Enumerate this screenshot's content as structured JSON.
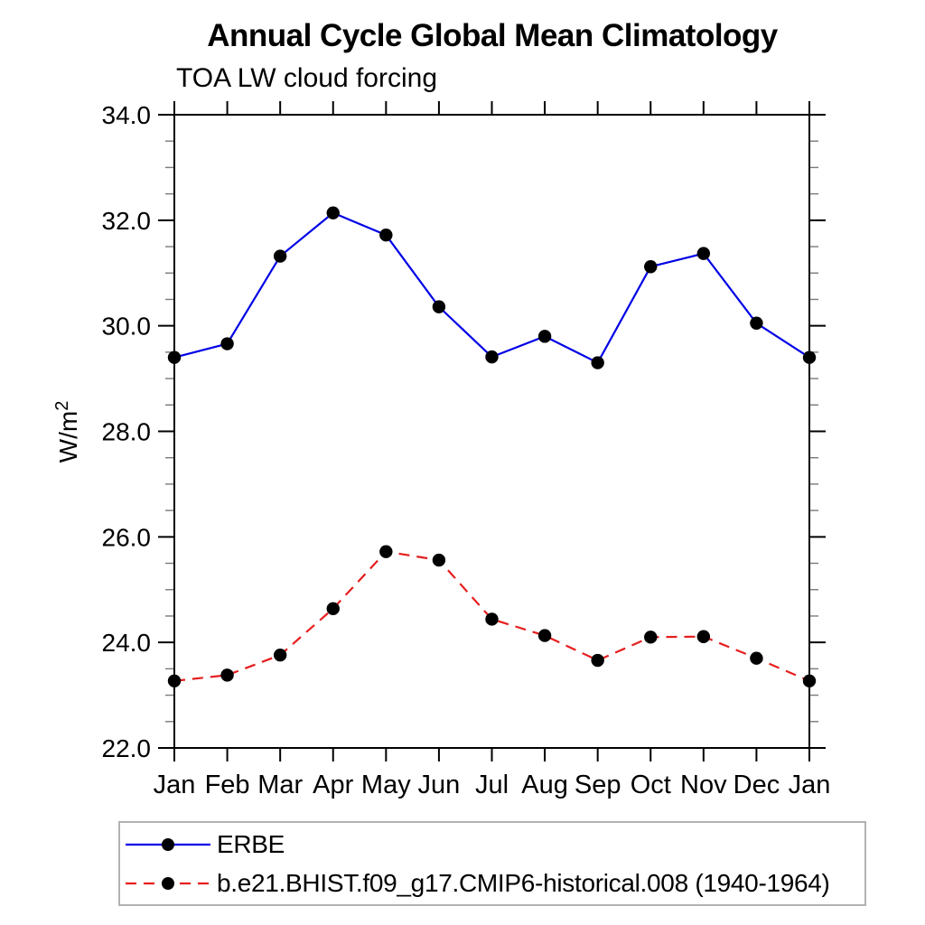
{
  "page": {
    "background": "#ffffff"
  },
  "chart_data": {
    "type": "line",
    "title": "Annual Cycle Global Mean Climatology",
    "subtitle": "TOA LW cloud forcing",
    "ylabel": "W/m²",
    "ylabel_base": "W/m",
    "ylabel_exp": "2",
    "x_categories": [
      "Jan",
      "Feb",
      "Mar",
      "Apr",
      "May",
      "Jun",
      "Jul",
      "Aug",
      "Sep",
      "Oct",
      "Nov",
      "Dec",
      "Jan"
    ],
    "ylim": [
      22.0,
      34.0
    ],
    "y_tick_values": [
      22,
      24,
      26,
      28,
      30,
      32,
      34
    ],
    "y_tick_labels": [
      "22.0",
      "24.0",
      "26.0",
      "28.0",
      "30.0",
      "32.0",
      "34.0"
    ],
    "y_minor_step": 0.5,
    "grid": false,
    "legend_position": "below-left",
    "axis_color": "#000000",
    "minor_tick_color": "#7a7a7a",
    "series": [
      {
        "name": "ERBE",
        "color": "#0000e6",
        "line_style": "solid",
        "marker": "filled-circle",
        "marker_color": "#000000",
        "values": [
          29.4,
          29.66,
          31.32,
          32.14,
          31.72,
          30.36,
          29.41,
          29.8,
          29.3,
          31.12,
          31.37,
          30.05,
          29.4
        ]
      },
      {
        "name": "b.e21.BHIST.f09_g17.CMIP6-historical.008 (1940-1964)",
        "color": "#e61e1e",
        "line_style": "dashed",
        "marker": "filled-circle",
        "marker_color": "#000000",
        "values": [
          23.27,
          23.38,
          23.76,
          24.64,
          25.72,
          25.56,
          24.44,
          24.13,
          23.66,
          24.1,
          24.11,
          23.7,
          23.27
        ]
      }
    ]
  }
}
